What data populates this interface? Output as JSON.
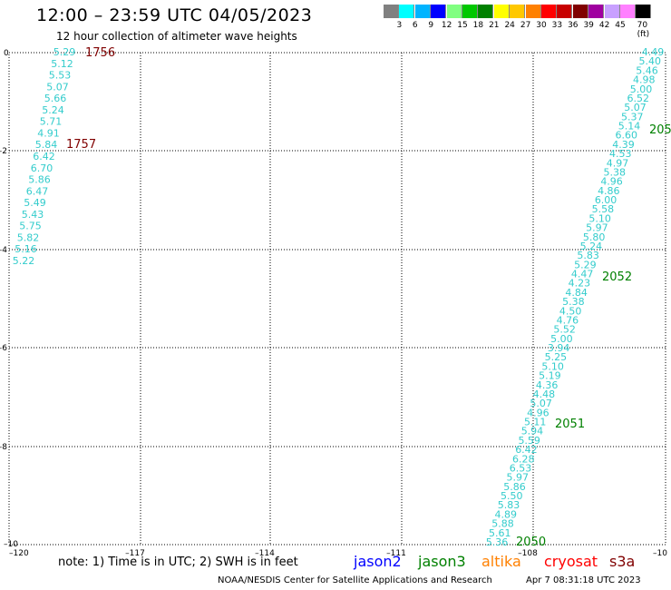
{
  "header": {
    "title": "12:00 – 23:59 UTC 04/05/2023",
    "subtitle": "12 hour collection of altimeter wave heights"
  },
  "colorbar": {
    "swatches": [
      "#808080",
      "#00ffff",
      "#00b4ff",
      "#0000ff",
      "#80ff80",
      "#00c800",
      "#008000",
      "#ffff00",
      "#ffc800",
      "#ff8000",
      "#ff0000",
      "#c80000",
      "#800000",
      "#a000a0",
      "#c8a0ff",
      "#ff80ff",
      "#000000"
    ],
    "labels": [
      "3",
      "6",
      "9",
      "12",
      "15",
      "18",
      "21",
      "24",
      "27",
      "30",
      "33",
      "36",
      "39",
      "42",
      "45",
      "70 (ft)"
    ]
  },
  "map": {
    "x_ticks": [
      "–120",
      "–117",
      "–114",
      "–111",
      "–108",
      "–10"
    ],
    "y_ticks": [
      "0",
      "–2",
      "–4",
      "–6",
      "–8",
      "–10"
    ],
    "track_color": "#33cccc",
    "left_track": [
      "5.29",
      "5.12",
      "5.53",
      "5.07",
      "5.66",
      "5.24",
      "5.71",
      "4.91",
      "5.84",
      "6.42",
      "6.70",
      "5.86",
      "6.47",
      "5.49",
      "5.43",
      "5.75",
      "5.82",
      "5.16",
      "5.22"
    ],
    "left_time_labels": [
      {
        "text": "1756",
        "color": "#800000"
      },
      {
        "text": "1757",
        "color": "#800000"
      }
    ],
    "right_track": [
      "4.49",
      "5.40",
      "5.46",
      "4.98",
      "5.00",
      "6.52",
      "5.07",
      "5.37",
      "5.14",
      "6.60",
      "4.39",
      "4.53",
      "4.97",
      "5.38",
      "4.96",
      "4.86",
      "6.00",
      "5.58",
      "5.10",
      "5.97",
      "5.80",
      "5.24",
      "5.83",
      "5.29",
      "4.47",
      "4.23",
      "4.84",
      "5.38",
      "4.50",
      "4.76",
      "5.52",
      "5.00",
      "3.94",
      "5.25",
      "5.10",
      "5.19",
      "4.36",
      "4.48",
      "5.07",
      "4.96",
      "5.11",
      "5.94",
      "5.59",
      "6.42",
      "6.28",
      "6.53",
      "5.97",
      "5.86",
      "5.50",
      "5.83",
      "4.89",
      "5.88",
      "5.61",
      "5.36"
    ],
    "right_time_labels": [
      {
        "text": "205",
        "color": "#008000"
      },
      {
        "text": "2052",
        "color": "#008000"
      },
      {
        "text": "2051",
        "color": "#008000"
      },
      {
        "text": "2050",
        "color": "#008000"
      }
    ]
  },
  "footer": {
    "note": "note:  1) Time is in UTC;  2) SWH is in feet",
    "satellites": [
      {
        "name": "jason2",
        "color": "#0000ff"
      },
      {
        "name": "jason3",
        "color": "#008000"
      },
      {
        "name": "altika",
        "color": "#ff8000"
      },
      {
        "name": "cryosat",
        "color": "#ff0000"
      },
      {
        "name": "s3a",
        "color": "#800000"
      }
    ],
    "credit": "NOAA/NESDIS Center for Satellite Applications and Research",
    "timestamp": "Apr  7 08:31:18 UTC 2023"
  }
}
